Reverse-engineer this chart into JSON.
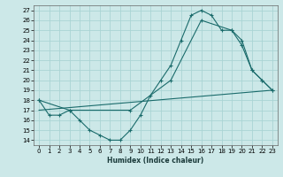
{
  "title": "",
  "xlabel": "Humidex (Indice chaleur)",
  "xlim": [
    -0.5,
    23.5
  ],
  "ylim": [
    13.5,
    27.5
  ],
  "yticks": [
    14,
    15,
    16,
    17,
    18,
    19,
    20,
    21,
    22,
    23,
    24,
    25,
    26,
    27
  ],
  "xticks": [
    0,
    1,
    2,
    3,
    4,
    5,
    6,
    7,
    8,
    9,
    10,
    11,
    12,
    13,
    14,
    15,
    16,
    17,
    18,
    19,
    20,
    21,
    22,
    23
  ],
  "bg_color": "#cce8e8",
  "line_color": "#1a6b6b",
  "grid_color": "#aad4d4",
  "line1_x": [
    0,
    1,
    2,
    3,
    4,
    5,
    6,
    7,
    8,
    9,
    10,
    11,
    12,
    13,
    14,
    15,
    16,
    17,
    18,
    19,
    20,
    21,
    22,
    23
  ],
  "line1_y": [
    18,
    16.5,
    16.5,
    17,
    16,
    15,
    14.5,
    14,
    14,
    15,
    16.5,
    18.5,
    20,
    21.5,
    24,
    26.5,
    27,
    26.5,
    25,
    25,
    24,
    21,
    20,
    19
  ],
  "line2_x": [
    0,
    3,
    9,
    13,
    16,
    19,
    20,
    21,
    22,
    23
  ],
  "line2_y": [
    18,
    17,
    17,
    20,
    26,
    25,
    23.5,
    21,
    20,
    19
  ],
  "line3_x": [
    0,
    23
  ],
  "line3_y": [
    17,
    19
  ]
}
